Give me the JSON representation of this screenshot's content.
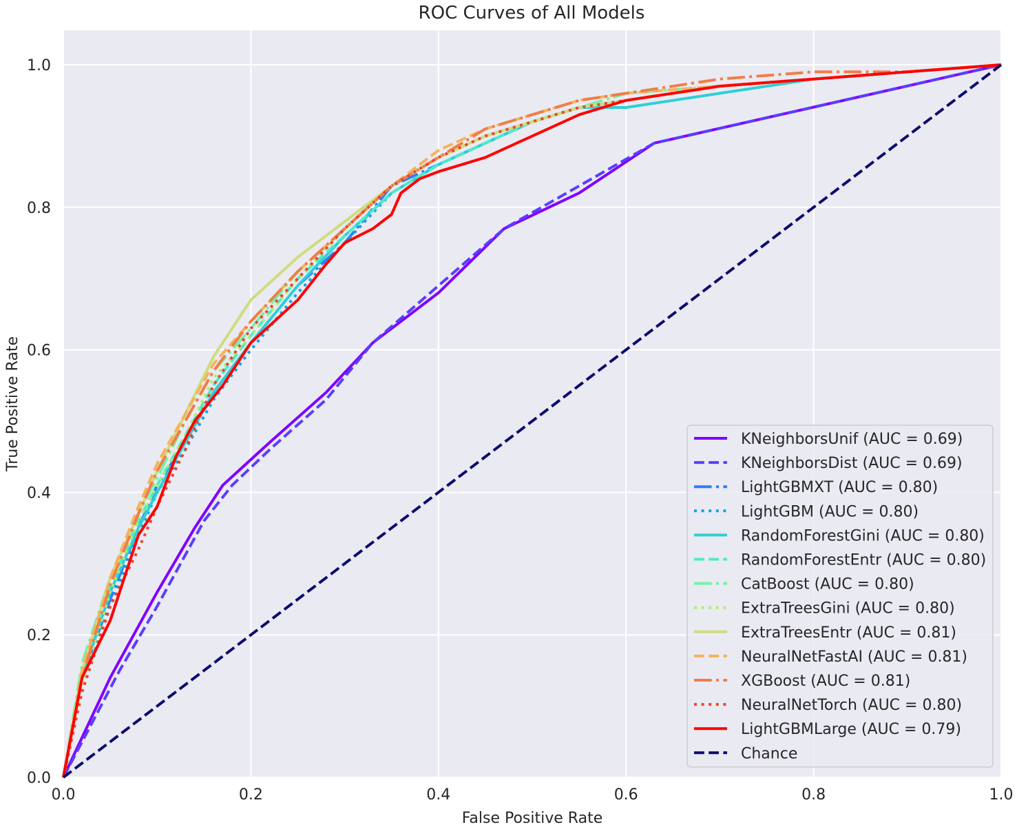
{
  "chart_data": {
    "type": "line",
    "title": "ROC Curves of All Models",
    "xlabel": "False Positive Rate",
    "ylabel": "True Positive Rate",
    "xlim": [
      0.0,
      1.0
    ],
    "ylim": [
      0.0,
      1.0
    ],
    "grid": true,
    "legend_position": "lower-right",
    "x_ticks": [
      "0.0",
      "0.2",
      "0.4",
      "0.6",
      "0.8",
      "1.0"
    ],
    "y_ticks": [
      "0.0",
      "0.2",
      "0.4",
      "0.6",
      "0.8",
      "1.0"
    ],
    "x_tick_values": [
      0.0,
      0.2,
      0.4,
      0.6,
      0.8,
      1.0
    ],
    "y_tick_values": [
      0.0,
      0.2,
      0.4,
      0.6,
      0.8,
      1.0
    ],
    "colors": {
      "background": "#eaeaf2",
      "grid": "#ffffff"
    },
    "series": [
      {
        "name": "KNeighborsUnif (AUC = 0.69)",
        "color": "#7f00ff",
        "style": "solid",
        "x": [
          0.0,
          0.05,
          0.1,
          0.14,
          0.17,
          0.22,
          0.28,
          0.33,
          0.4,
          0.47,
          0.55,
          0.63,
          1.0
        ],
        "y": [
          0.0,
          0.14,
          0.26,
          0.35,
          0.41,
          0.47,
          0.54,
          0.61,
          0.68,
          0.77,
          0.82,
          0.89,
          1.0
        ]
      },
      {
        "name": "KNeighborsDist (AUC = 0.69)",
        "color": "#5a3dff",
        "style": "dashed",
        "x": [
          0.0,
          0.06,
          0.1,
          0.15,
          0.18,
          0.22,
          0.28,
          0.33,
          0.4,
          0.47,
          0.55,
          0.63,
          1.0
        ],
        "y": [
          0.0,
          0.15,
          0.24,
          0.36,
          0.41,
          0.46,
          0.53,
          0.61,
          0.69,
          0.77,
          0.83,
          0.89,
          1.0
        ]
      },
      {
        "name": "LightGBMXT (AUC = 0.80)",
        "color": "#2c7ef7",
        "style": "dashdot",
        "x": [
          0.0,
          0.02,
          0.05,
          0.08,
          0.1,
          0.13,
          0.16,
          0.2,
          0.25,
          0.3,
          0.35,
          0.4,
          0.45,
          0.5,
          0.55,
          0.6,
          0.7,
          0.8,
          0.9,
          1.0
        ],
        "y": [
          0.0,
          0.14,
          0.25,
          0.35,
          0.41,
          0.47,
          0.54,
          0.61,
          0.69,
          0.75,
          0.83,
          0.86,
          0.89,
          0.92,
          0.94,
          0.95,
          0.97,
          0.98,
          0.99,
          1.0
        ]
      },
      {
        "name": "LightGBM (AUC = 0.80)",
        "color": "#0fa3e8",
        "style": "dotted",
        "x": [
          0.0,
          0.02,
          0.05,
          0.08,
          0.1,
          0.13,
          0.16,
          0.2,
          0.25,
          0.3,
          0.35,
          0.4,
          0.45,
          0.5,
          0.55,
          0.6,
          0.7,
          0.8,
          0.9,
          1.0
        ],
        "y": [
          0.0,
          0.13,
          0.24,
          0.34,
          0.4,
          0.46,
          0.53,
          0.6,
          0.68,
          0.75,
          0.82,
          0.86,
          0.89,
          0.92,
          0.94,
          0.95,
          0.97,
          0.98,
          0.99,
          1.0
        ]
      },
      {
        "name": "RandomForestGini (AUC = 0.80)",
        "color": "#2ecfd6",
        "style": "solid",
        "x": [
          0.0,
          0.02,
          0.05,
          0.08,
          0.1,
          0.13,
          0.16,
          0.2,
          0.25,
          0.3,
          0.35,
          0.4,
          0.45,
          0.5,
          0.55,
          0.6,
          0.65,
          0.7,
          0.8,
          0.9,
          1.0
        ],
        "y": [
          0.0,
          0.14,
          0.26,
          0.35,
          0.4,
          0.47,
          0.54,
          0.61,
          0.69,
          0.76,
          0.82,
          0.86,
          0.89,
          0.92,
          0.94,
          0.94,
          0.95,
          0.96,
          0.98,
          0.99,
          1.0
        ]
      },
      {
        "name": "RandomForestEntr (AUC = 0.80)",
        "color": "#4debc8",
        "style": "dashed",
        "x": [
          0.0,
          0.02,
          0.05,
          0.08,
          0.1,
          0.13,
          0.16,
          0.2,
          0.25,
          0.3,
          0.35,
          0.4,
          0.45,
          0.5,
          0.55,
          0.6,
          0.7,
          0.8,
          0.9,
          1.0
        ],
        "y": [
          0.0,
          0.15,
          0.27,
          0.36,
          0.41,
          0.48,
          0.55,
          0.62,
          0.7,
          0.76,
          0.82,
          0.86,
          0.89,
          0.92,
          0.94,
          0.95,
          0.97,
          0.98,
          0.99,
          1.0
        ]
      },
      {
        "name": "CatBoost (AUC = 0.80)",
        "color": "#72f3a8",
        "style": "dashdot",
        "x": [
          0.0,
          0.02,
          0.05,
          0.08,
          0.1,
          0.13,
          0.16,
          0.2,
          0.25,
          0.3,
          0.35,
          0.4,
          0.45,
          0.5,
          0.55,
          0.6,
          0.7,
          0.8,
          0.9,
          1.0
        ],
        "y": [
          0.0,
          0.16,
          0.28,
          0.37,
          0.42,
          0.5,
          0.57,
          0.63,
          0.71,
          0.77,
          0.83,
          0.87,
          0.9,
          0.92,
          0.94,
          0.96,
          0.97,
          0.98,
          0.99,
          1.0
        ]
      },
      {
        "name": "ExtraTreesGini (AUC = 0.80)",
        "color": "#a7f16f",
        "style": "dotted",
        "x": [
          0.0,
          0.02,
          0.05,
          0.08,
          0.1,
          0.13,
          0.16,
          0.2,
          0.25,
          0.3,
          0.35,
          0.4,
          0.45,
          0.5,
          0.55,
          0.6,
          0.7,
          0.8,
          0.9,
          1.0
        ],
        "y": [
          0.0,
          0.13,
          0.26,
          0.36,
          0.41,
          0.48,
          0.56,
          0.62,
          0.7,
          0.77,
          0.83,
          0.87,
          0.9,
          0.92,
          0.94,
          0.95,
          0.97,
          0.98,
          0.99,
          1.0
        ]
      },
      {
        "name": "ExtraTreesEntr (AUC = 0.81)",
        "color": "#cfdc7c",
        "style": "solid",
        "x": [
          0.0,
          0.02,
          0.05,
          0.08,
          0.1,
          0.13,
          0.16,
          0.2,
          0.25,
          0.3,
          0.35,
          0.4,
          0.45,
          0.5,
          0.55,
          0.6,
          0.7,
          0.8,
          0.9,
          1.0
        ],
        "y": [
          0.0,
          0.15,
          0.28,
          0.37,
          0.43,
          0.51,
          0.59,
          0.67,
          0.73,
          0.78,
          0.83,
          0.87,
          0.9,
          0.92,
          0.94,
          0.95,
          0.97,
          0.98,
          0.99,
          1.0
        ]
      },
      {
        "name": "NeuralNetFastAI (AUC = 0.81)",
        "color": "#f7b25b",
        "style": "dashed",
        "x": [
          0.0,
          0.02,
          0.05,
          0.08,
          0.1,
          0.13,
          0.16,
          0.2,
          0.25,
          0.3,
          0.35,
          0.4,
          0.45,
          0.5,
          0.55,
          0.6,
          0.7,
          0.8,
          0.9,
          1.0
        ],
        "y": [
          0.0,
          0.15,
          0.28,
          0.38,
          0.44,
          0.51,
          0.58,
          0.64,
          0.71,
          0.77,
          0.83,
          0.88,
          0.91,
          0.93,
          0.95,
          0.96,
          0.97,
          0.98,
          0.99,
          1.0
        ]
      },
      {
        "name": "XGBoost (AUC = 0.81)",
        "color": "#f17d47",
        "style": "dashdot",
        "x": [
          0.0,
          0.02,
          0.05,
          0.08,
          0.1,
          0.13,
          0.16,
          0.2,
          0.25,
          0.3,
          0.35,
          0.4,
          0.45,
          0.5,
          0.55,
          0.6,
          0.7,
          0.8,
          0.9,
          1.0
        ],
        "y": [
          0.0,
          0.14,
          0.27,
          0.37,
          0.43,
          0.5,
          0.57,
          0.64,
          0.71,
          0.77,
          0.83,
          0.87,
          0.91,
          0.93,
          0.95,
          0.96,
          0.98,
          0.99,
          0.99,
          1.0
        ]
      },
      {
        "name": "NeuralNetTorch (AUC = 0.80)",
        "color": "#e84630",
        "style": "dotted",
        "x": [
          0.0,
          0.02,
          0.05,
          0.08,
          0.1,
          0.13,
          0.16,
          0.2,
          0.25,
          0.3,
          0.35,
          0.4,
          0.45,
          0.5,
          0.55,
          0.6,
          0.7,
          0.8,
          0.9,
          1.0
        ],
        "y": [
          0.0,
          0.12,
          0.24,
          0.32,
          0.38,
          0.46,
          0.55,
          0.63,
          0.7,
          0.77,
          0.83,
          0.87,
          0.9,
          0.92,
          0.94,
          0.95,
          0.97,
          0.98,
          0.99,
          1.0
        ]
      },
      {
        "name": "LightGBMLarge (AUC = 0.79)",
        "color": "#ff0000",
        "style": "solid",
        "x": [
          0.0,
          0.02,
          0.05,
          0.06,
          0.08,
          0.1,
          0.12,
          0.14,
          0.17,
          0.2,
          0.25,
          0.28,
          0.3,
          0.33,
          0.35,
          0.36,
          0.38,
          0.4,
          0.45,
          0.5,
          0.55,
          0.6,
          0.65,
          0.7,
          0.8,
          0.9,
          1.0
        ],
        "y": [
          0.0,
          0.14,
          0.22,
          0.26,
          0.34,
          0.38,
          0.45,
          0.5,
          0.55,
          0.61,
          0.67,
          0.72,
          0.75,
          0.77,
          0.79,
          0.82,
          0.84,
          0.85,
          0.87,
          0.9,
          0.93,
          0.95,
          0.96,
          0.97,
          0.98,
          0.99,
          1.0
        ]
      },
      {
        "name": "Chance",
        "color": "#0b0b6e",
        "style": "dashed",
        "x": [
          0.0,
          1.0
        ],
        "y": [
          0.0,
          1.0
        ]
      }
    ]
  }
}
